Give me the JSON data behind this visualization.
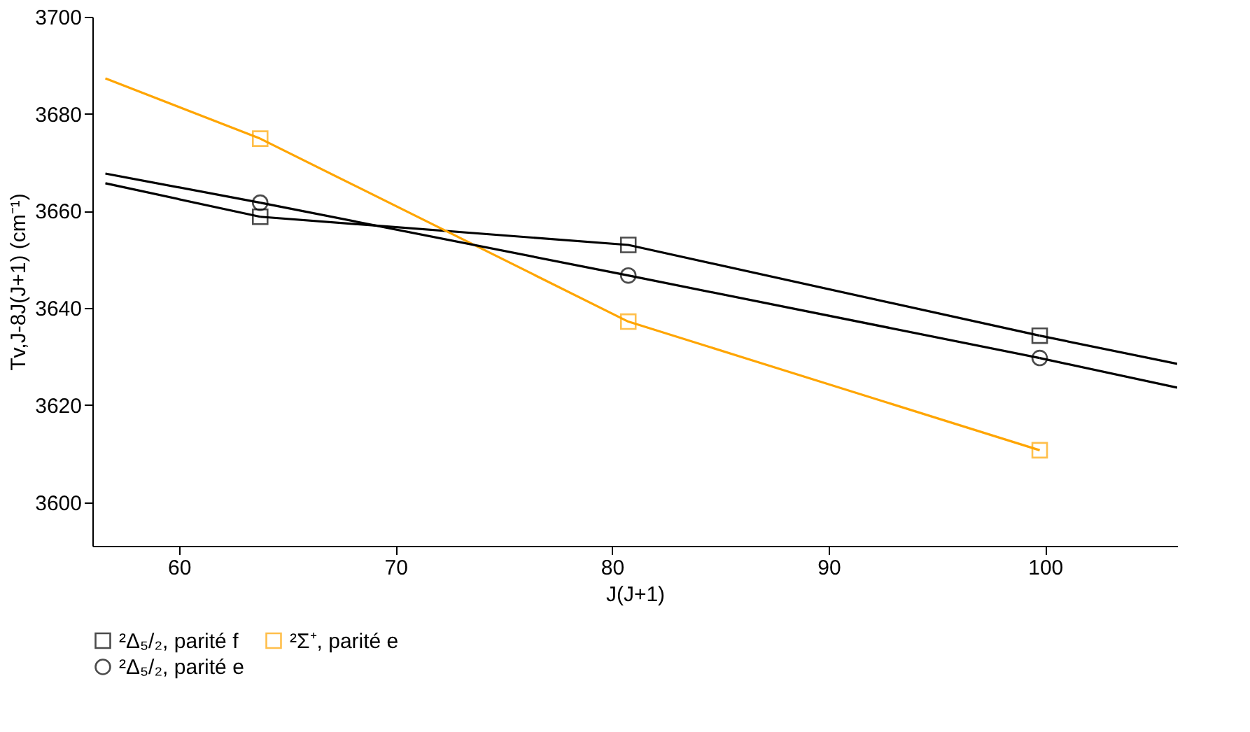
{
  "chart_data": {
    "type": "line",
    "xlabel": "J(J+1)",
    "ylabel": "Tv,J-8J(J+1) (cm⁻¹)",
    "xlim": [
      56,
      106.1
    ],
    "xticks": [
      60,
      70,
      80,
      90,
      100
    ],
    "ylim": [
      3591,
      3700
    ],
    "yticks": [
      3600,
      3620,
      3640,
      3660,
      3680,
      3700
    ],
    "grid": false,
    "legend": "bottom",
    "line_style": "solid",
    "series": [
      {
        "name": "²Δ₅/₂, parité f",
        "color": "#000000",
        "marker": "square",
        "x": [
          63.75,
          80.75,
          99.75
        ],
        "values": [
          3658.8,
          3653.0,
          3634.3
        ]
      },
      {
        "name": "²Σ⁺, parité e",
        "color": "#ffa500",
        "marker": "square",
        "x": [
          63.75,
          80.75,
          99.75
        ],
        "values": [
          3674.9,
          3637.2,
          3610.7
        ]
      },
      {
        "name": "²Δ₅/₂, parité e",
        "color": "#000000",
        "marker": "circle",
        "x": [
          63.75,
          80.75,
          99.75
        ],
        "values": [
          3661.7,
          3646.7,
          3629.7
        ]
      },
      {
        "color": "#000000",
        "marker": "none",
        "x": [
          56.6,
          63.75,
          80.75,
          99.75,
          106.1
        ],
        "values": [
          3665.7,
          3658.8,
          null,
          3634.3,
          3628.5
        ]
      },
      {
        "color": "#ffa500",
        "marker": "none",
        "x": [
          56.6,
          63.75
        ],
        "values": [
          3687.3,
          3674.9
        ]
      },
      {
        "color": "#000000",
        "marker": "none",
        "x": [
          56.6,
          63.75,
          80.75,
          99.75,
          106.1
        ],
        "values": [
          3667.7,
          3661.7,
          null,
          3629.7,
          3623.6
        ]
      }
    ]
  }
}
